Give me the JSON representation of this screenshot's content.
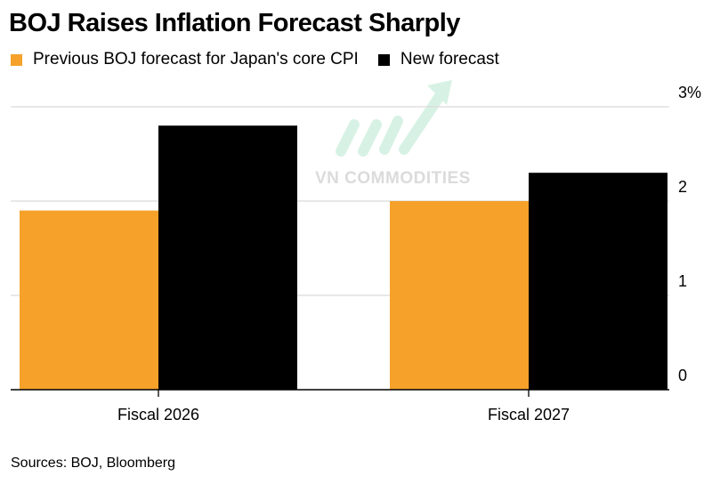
{
  "chart_data": {
    "type": "bar",
    "title": "BOJ Raises Inflation Forecast Sharply",
    "categories": [
      "Fiscal 2026",
      "Fiscal 2027"
    ],
    "series": [
      {
        "name": "Previous BOJ forecast for Japan's core CPI",
        "values": [
          1.9,
          2.0
        ],
        "color": "#f5a12a"
      },
      {
        "name": "New forecast",
        "values": [
          2.8,
          2.3
        ],
        "color": "#000000"
      }
    ],
    "ylim": [
      0,
      3
    ],
    "yticks": [
      0,
      1,
      2,
      3
    ],
    "ytick_labels": [
      "0",
      "1",
      "2",
      "3%"
    ],
    "xlabel": "",
    "ylabel": "",
    "grid": true,
    "legend_position": "top-left"
  },
  "source": "Sources: BOJ, Bloomberg",
  "watermark": "VN COMMODITIES",
  "watermark_color": "#bfbfbf",
  "grid_color": "#d9d9d9"
}
